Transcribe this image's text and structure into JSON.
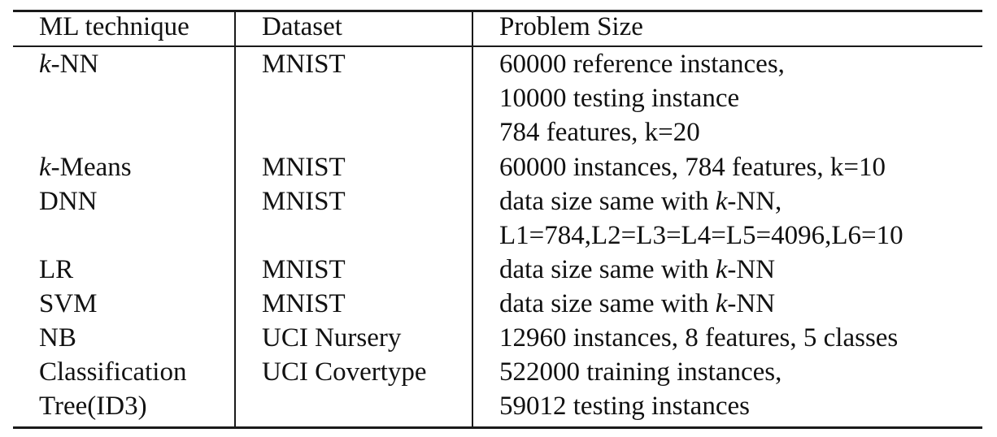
{
  "table": {
    "headers": {
      "technique": "ML technique",
      "dataset": "Dataset",
      "problem_size": "Problem Size"
    },
    "rows": [
      {
        "technique": {
          "var": "k",
          "rest": "-NN"
        },
        "dataset": "MNIST",
        "problem_size": [
          "60000 reference instances,",
          "10000 testing instance",
          "784 features, k=20"
        ]
      },
      {
        "technique": {
          "var": "k",
          "rest": "-Means"
        },
        "dataset": "MNIST",
        "problem_size": [
          "60000 instances, 784 features, k=10"
        ]
      },
      {
        "technique": "DNN",
        "dataset": "MNIST",
        "problem_size": [
          {
            "pre": "data size same with ",
            "var": "k",
            "post": "-NN,"
          },
          "L1=784,L2=L3=L4=L5=4096,L6=10"
        ]
      },
      {
        "technique": "LR",
        "dataset": "MNIST",
        "problem_size": [
          {
            "pre": "data size same with ",
            "var": "k",
            "post": "-NN"
          }
        ]
      },
      {
        "technique": "SVM",
        "dataset": "MNIST",
        "problem_size": [
          {
            "pre": "data size same with ",
            "var": "k",
            "post": "-NN"
          }
        ]
      },
      {
        "technique": "NB",
        "dataset": "UCI Nursery",
        "problem_size": [
          "12960 instances, 8 features, 5 classes"
        ]
      },
      {
        "technique": [
          "Classification",
          "Tree(ID3)"
        ],
        "dataset": "UCI Covertype",
        "problem_size": [
          "522000 training instances,",
          "59012 testing instances"
        ]
      }
    ]
  }
}
